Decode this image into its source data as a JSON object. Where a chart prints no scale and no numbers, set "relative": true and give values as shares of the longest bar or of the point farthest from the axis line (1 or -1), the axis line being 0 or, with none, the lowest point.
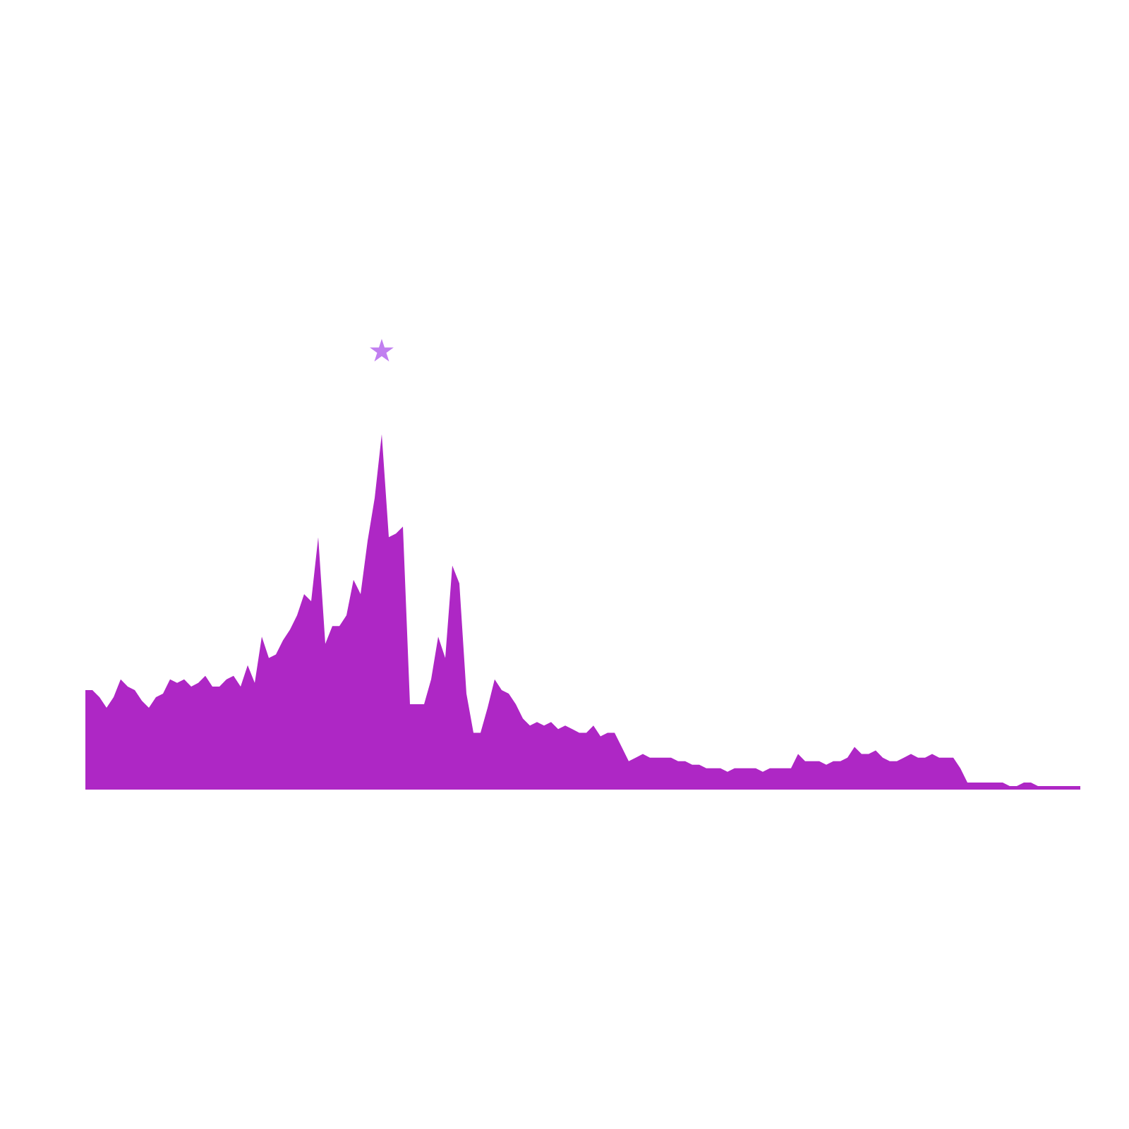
{
  "chart_data": {
    "type": "area",
    "relative": true,
    "color": "#ae27c5",
    "categories": [
      null,
      null,
      null,
      null,
      null,
      null,
      null,
      null,
      null,
      null,
      null,
      null,
      null,
      null,
      null,
      null,
      null,
      null,
      null,
      null,
      null,
      null,
      null,
      null,
      null,
      null,
      null,
      null,
      null,
      null,
      null,
      null,
      null,
      null,
      null,
      null,
      null,
      null,
      null,
      null,
      null,
      null,
      null,
      null,
      null,
      null,
      null,
      null,
      null,
      null,
      null,
      null,
      null,
      null,
      null,
      null,
      null,
      null,
      null,
      null,
      null,
      null,
      null,
      null,
      null,
      null,
      null,
      null,
      null,
      null,
      null,
      null,
      null,
      null,
      null,
      null,
      null,
      null,
      null,
      null,
      null,
      null,
      null,
      null,
      null,
      null,
      null,
      null,
      null,
      null,
      null,
      null,
      null,
      null,
      null,
      null,
      null,
      null,
      null,
      null,
      null,
      null,
      null,
      null,
      null,
      null,
      null,
      null,
      null,
      null,
      null,
      null,
      null,
      null,
      null,
      null,
      null,
      null,
      null,
      null,
      null,
      null,
      null,
      null,
      null,
      null,
      null,
      null,
      null,
      null,
      null,
      null,
      null,
      null,
      null,
      null,
      null,
      null,
      null,
      null,
      null,
      null
    ],
    "values": [
      0.28,
      0.28,
      0.26,
      0.23,
      0.26,
      0.31,
      0.29,
      0.28,
      0.25,
      0.23,
      0.26,
      0.27,
      0.31,
      0.3,
      0.31,
      0.29,
      0.3,
      0.32,
      0.29,
      0.29,
      0.31,
      0.32,
      0.29,
      0.35,
      0.3,
      0.43,
      0.37,
      0.38,
      0.42,
      0.45,
      0.49,
      0.55,
      0.53,
      0.71,
      0.41,
      0.46,
      0.46,
      0.49,
      0.59,
      0.55,
      0.7,
      0.82,
      1.0,
      0.71,
      0.72,
      0.74,
      0.24,
      0.24,
      0.24,
      0.31,
      0.43,
      0.37,
      0.63,
      0.58,
      0.27,
      0.16,
      0.16,
      0.23,
      0.31,
      0.28,
      0.27,
      0.24,
      0.2,
      0.18,
      0.19,
      0.18,
      0.19,
      0.17,
      0.18,
      0.17,
      0.16,
      0.16,
      0.18,
      0.15,
      0.16,
      0.16,
      0.12,
      0.08,
      0.09,
      0.1,
      0.09,
      0.09,
      0.09,
      0.09,
      0.08,
      0.08,
      0.07,
      0.07,
      0.06,
      0.06,
      0.06,
      0.05,
      0.06,
      0.06,
      0.06,
      0.06,
      0.05,
      0.06,
      0.06,
      0.06,
      0.06,
      0.1,
      0.08,
      0.08,
      0.08,
      0.07,
      0.08,
      0.08,
      0.09,
      0.12,
      0.1,
      0.1,
      0.11,
      0.09,
      0.08,
      0.08,
      0.09,
      0.1,
      0.09,
      0.09,
      0.1,
      0.09,
      0.09,
      0.09,
      0.06,
      0.02,
      0.02,
      0.02,
      0.02,
      0.02,
      0.02,
      0.01,
      0.01,
      0.02,
      0.02,
      0.01,
      0.01,
      0.01,
      0.01,
      0.01,
      0.01,
      0.01
    ],
    "annotations": [
      {
        "text": "★",
        "y": 1.0
      }
    ]
  }
}
